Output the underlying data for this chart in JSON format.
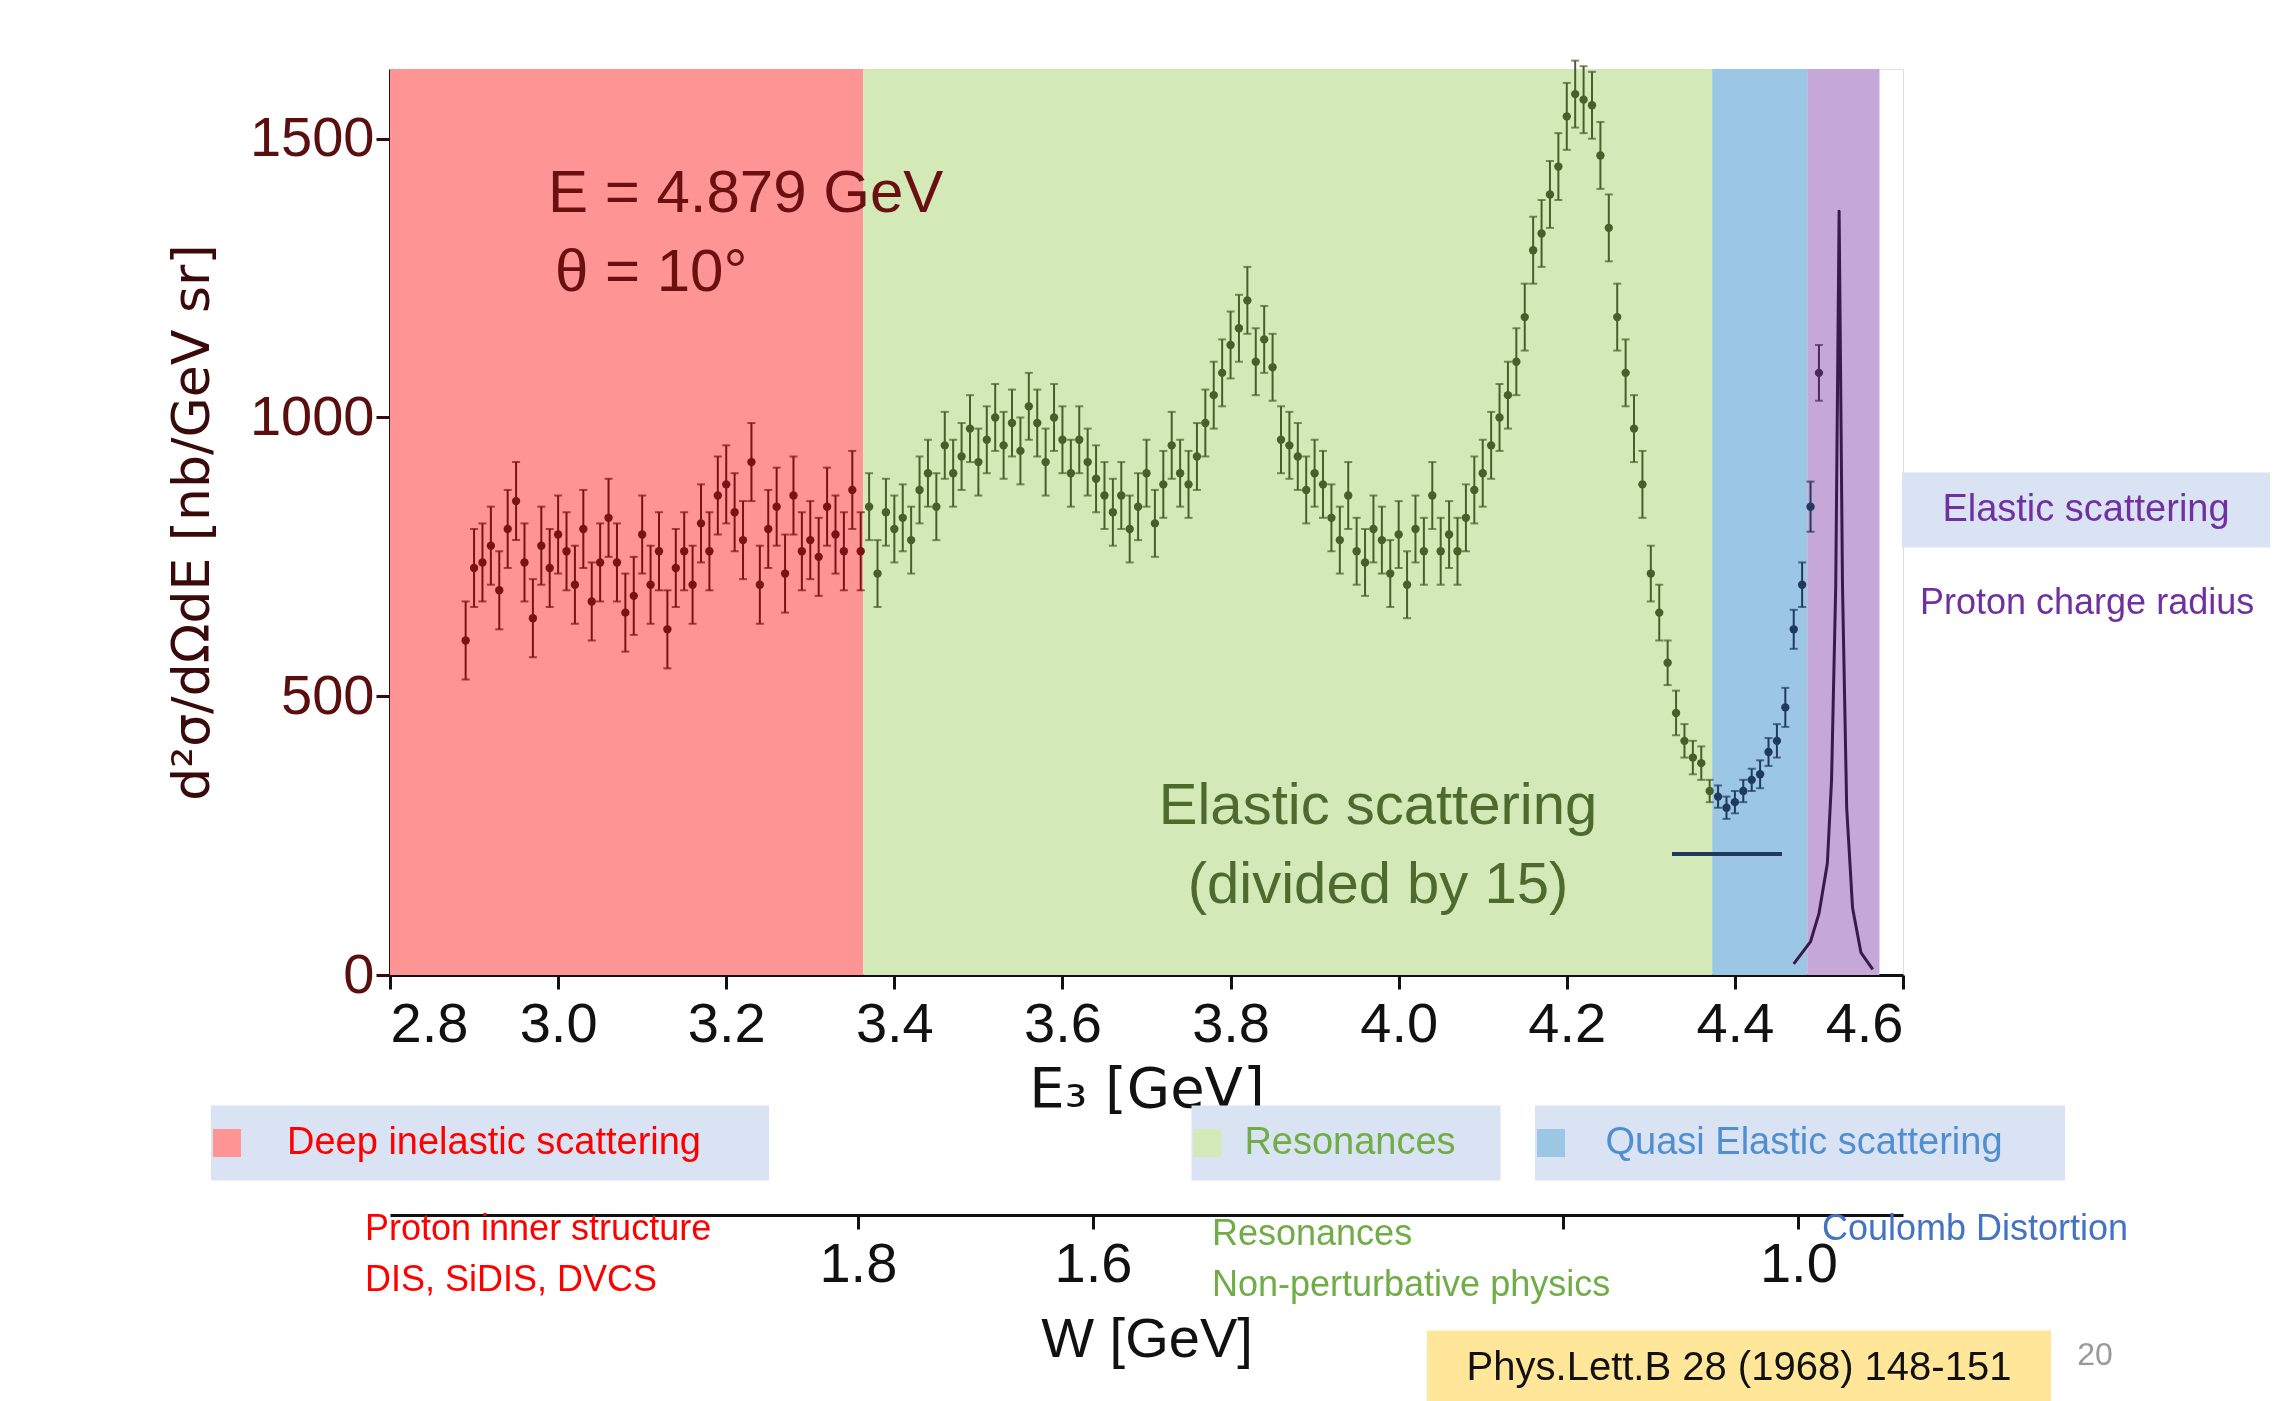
{
  "chart_data": {
    "type": "scatter",
    "xlabel": "E₃ [GeV]",
    "ylabel": "d²σ/dΩdE [nb/GeV sr]",
    "x2label": "W [GeV]",
    "xlim": [
      2.8,
      4.6
    ],
    "xticks": [
      2.8,
      {
        "value": 3,
        "label": "3.0"
      },
      3.2,
      3.4,
      3.6,
      3.8,
      {
        "value": 4,
        "label": "4.0"
      },
      4.2,
      4.4,
      4.6
    ],
    "ylim": [
      0,
      1625
    ],
    "yticks": [
      0,
      500,
      1000,
      1500
    ],
    "x2lim": [
      2.198,
      0.911
    ],
    "x2ticks": [
      1.8,
      1.6,
      {
        "value": 1.2,
        "label": null
      },
      {
        "value": 1,
        "label": "1.0"
      }
    ],
    "marker": "circle",
    "grid": false,
    "legend": "bottom",
    "bands": [
      {
        "axis": "x",
        "from": 2.8,
        "to": 3.363,
        "label": "Deep inelastic scattering",
        "color": "#ff9494"
      },
      {
        "axis": "x",
        "from": 3.363,
        "to": 4.373,
        "label": "Resonances",
        "color": "#d3eab8"
      },
      {
        "axis": "x",
        "from": 4.373,
        "to": 4.486,
        "label": "Quasi Elastic scattering",
        "color": "#9cc7e4"
      },
      {
        "axis": "x",
        "from": 4.486,
        "to": 4.572,
        "label": "Elastic scattering",
        "color": "#c6a8d8"
      }
    ],
    "series": [
      {
        "color": "#7a1414",
        "x": [
          2.89,
          2.9,
          2.91,
          2.92,
          2.93,
          2.94,
          2.95,
          2.96,
          2.97,
          2.98,
          2.99,
          3.0,
          3.01,
          3.02,
          3.03,
          3.04,
          3.05,
          3.06,
          3.07,
          3.08,
          3.09,
          3.1,
          3.11,
          3.12,
          3.13,
          3.14,
          3.15,
          3.16,
          3.17,
          3.18,
          3.19,
          3.2,
          3.21,
          3.22,
          3.23,
          3.24,
          3.25,
          3.26,
          3.27,
          3.28,
          3.29,
          3.3,
          3.31,
          3.32,
          3.33,
          3.34,
          3.35,
          3.36
        ],
        "values": [
          600,
          730,
          740,
          770,
          690,
          800,
          850,
          740,
          640,
          770,
          730,
          790,
          760,
          700,
          800,
          670,
          740,
          820,
          740,
          650,
          680,
          790,
          700,
          760,
          620,
          730,
          760,
          700,
          810,
          760,
          860,
          880,
          830,
          780,
          920,
          700,
          800,
          840,
          720,
          860,
          760,
          780,
          750,
          840,
          790,
          760,
          870,
          760
        ],
        "errors": [
          70,
          70,
          70,
          70,
          70,
          70,
          70,
          70,
          70,
          70,
          70,
          70,
          70,
          70,
          70,
          70,
          70,
          70,
          70,
          70,
          70,
          70,
          70,
          70,
          70,
          70,
          70,
          70,
          70,
          70,
          70,
          70,
          70,
          70,
          70,
          70,
          70,
          70,
          70,
          70,
          70,
          70,
          70,
          70,
          70,
          70,
          70,
          70
        ]
      },
      {
        "color": "#4a5e2a",
        "x": [
          3.37,
          3.38,
          3.39,
          3.4,
          3.41,
          3.42,
          3.43,
          3.44,
          3.45,
          3.46,
          3.47,
          3.48,
          3.49,
          3.5,
          3.51,
          3.52,
          3.53,
          3.54,
          3.55,
          3.56,
          3.57,
          3.58,
          3.59,
          3.6,
          3.61,
          3.62,
          3.63,
          3.64,
          3.65,
          3.66,
          3.67,
          3.68,
          3.69,
          3.7,
          3.71,
          3.72,
          3.73,
          3.74,
          3.75,
          3.76,
          3.77,
          3.78,
          3.79,
          3.8,
          3.81,
          3.82,
          3.83,
          3.84,
          3.85,
          3.86,
          3.87,
          3.88,
          3.89,
          3.9,
          3.91,
          3.92,
          3.93,
          3.94,
          3.95,
          3.96,
          3.97,
          3.98,
          3.99,
          4.0,
          4.01,
          4.02,
          4.03,
          4.04,
          4.05,
          4.06,
          4.07,
          4.08,
          4.09,
          4.1,
          4.11,
          4.12,
          4.13,
          4.14,
          4.15,
          4.16,
          4.17,
          4.18,
          4.19,
          4.2,
          4.21,
          4.22,
          4.23,
          4.24,
          4.25,
          4.26,
          4.27,
          4.28,
          4.29,
          4.3,
          4.31,
          4.32,
          4.33,
          4.34,
          4.35,
          4.36,
          4.37
        ],
        "values": [
          840,
          720,
          830,
          800,
          820,
          780,
          870,
          900,
          840,
          950,
          900,
          930,
          980,
          920,
          960,
          1000,
          950,
          990,
          940,
          1020,
          990,
          920,
          1000,
          960,
          900,
          960,
          920,
          890,
          860,
          830,
          860,
          800,
          840,
          900,
          810,
          880,
          950,
          900,
          880,
          930,
          990,
          1040,
          1080,
          1130,
          1160,
          1210,
          1100,
          1140,
          1090,
          960,
          950,
          930,
          870,
          900,
          880,
          820,
          780,
          860,
          760,
          740,
          800,
          780,
          720,
          790,
          700,
          800,
          760,
          860,
          760,
          790,
          760,
          820,
          870,
          900,
          950,
          1000,
          1040,
          1100,
          1180,
          1300,
          1330,
          1400,
          1450,
          1540,
          1580,
          1570,
          1560,
          1470,
          1340,
          1180,
          1080,
          980,
          880,
          720,
          650,
          560,
          470,
          420,
          390,
          380,
          330
        ],
        "errors": [
          60,
          60,
          60,
          60,
          60,
          60,
          60,
          60,
          60,
          60,
          60,
          60,
          60,
          60,
          60,
          60,
          60,
          60,
          60,
          60,
          60,
          60,
          60,
          60,
          60,
          60,
          60,
          60,
          60,
          60,
          60,
          60,
          60,
          60,
          60,
          60,
          60,
          60,
          60,
          60,
          60,
          60,
          60,
          60,
          60,
          60,
          60,
          60,
          60,
          60,
          60,
          60,
          60,
          60,
          60,
          60,
          60,
          60,
          60,
          60,
          60,
          60,
          60,
          60,
          60,
          60,
          60,
          60,
          60,
          60,
          60,
          60,
          60,
          60,
          60,
          60,
          60,
          60,
          60,
          60,
          60,
          60,
          60,
          60,
          60,
          60,
          60,
          60,
          60,
          60,
          60,
          60,
          60,
          50,
          50,
          40,
          40,
          30,
          30,
          30,
          20
        ]
      },
      {
        "color": "#1f3a5c",
        "x": [
          4.38,
          4.39,
          4.4,
          4.41,
          4.42,
          4.43,
          4.44,
          4.45,
          4.46,
          4.47,
          4.48,
          4.49
        ],
        "values": [
          320,
          300,
          310,
          330,
          350,
          360,
          400,
          420,
          480,
          620,
          700,
          840
        ],
        "errors": [
          20,
          20,
          20,
          20,
          20,
          25,
          25,
          30,
          35,
          35,
          40,
          45
        ]
      },
      {
        "color": "#4a2a5e",
        "x": [
          4.5
        ],
        "values": [
          1080
        ],
        "errors": [
          50
        ]
      },
      {
        "type": "line",
        "marker": "none",
        "color": "#3a1a4a",
        "x": [
          4.47,
          4.49,
          4.5,
          4.51,
          4.515,
          4.52,
          4.524,
          4.528,
          4.533,
          4.54,
          4.55,
          4.564
        ],
        "values": [
          20,
          60,
          110,
          200,
          350,
          700,
          1370,
          700,
          300,
          120,
          40,
          10
        ]
      }
    ],
    "annotations": [
      "E = 4.879 GeV",
      "θ = 10°",
      "Elastic scattering",
      "(divided by 15)",
      "Proton inner structure",
      "DIS, SiDIS, DVCS",
      "Resonances",
      "Non-perturbative physics",
      "Coulomb Distortion",
      "Proton charge radius",
      "Phys.Lett.B 28 (1968) 148-151",
      "20"
    ]
  }
}
